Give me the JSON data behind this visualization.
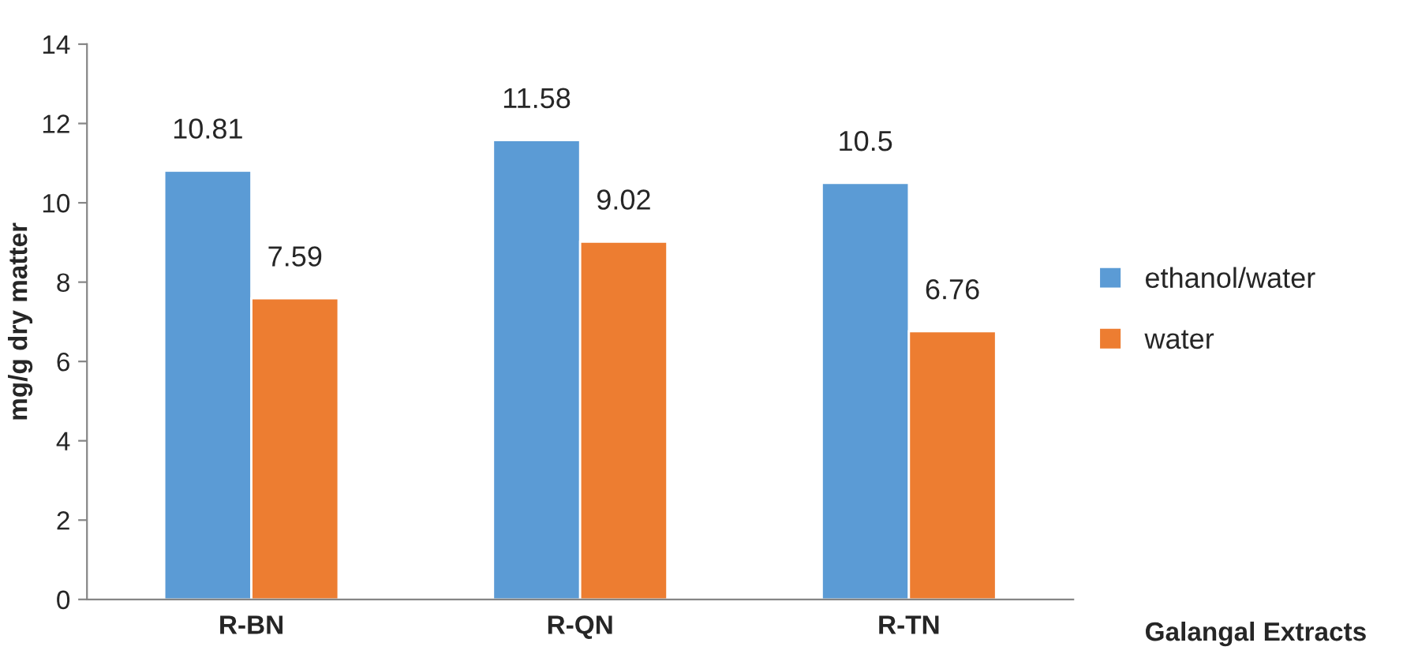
{
  "chart_data": {
    "type": "bar",
    "xlabel": "Galangal Extracts",
    "ylabel": "mg/g dry matter",
    "categories": [
      "R-BN",
      "R-QN",
      "R-TN"
    ],
    "series": [
      {
        "name": "ethanol/water",
        "color": "#5b9bd5",
        "values": [
          10.81,
          11.58,
          10.5
        ]
      },
      {
        "name": "water",
        "color": "#ed7d31",
        "values": [
          7.59,
          9.02,
          6.76
        ]
      }
    ],
    "ylim": [
      0,
      14
    ],
    "yticks": [
      0,
      2,
      4,
      6,
      8,
      10,
      12,
      14
    ],
    "data_labels": true,
    "grid": false,
    "legend": "right"
  }
}
